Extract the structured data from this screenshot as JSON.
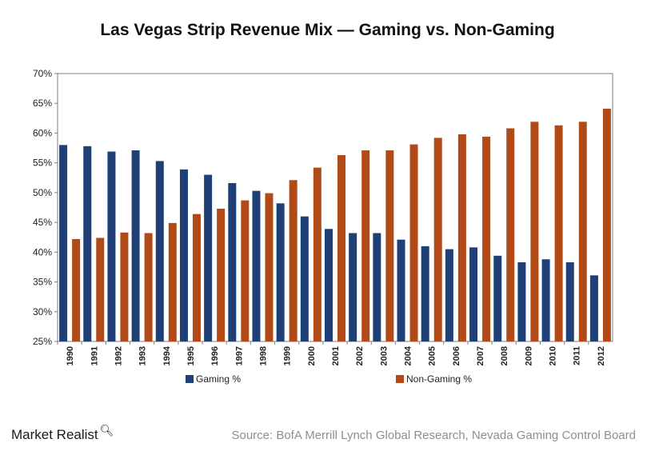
{
  "chart_data": {
    "type": "bar",
    "title": "Las Vegas Strip Revenue Mix — Gaming vs. Non-Gaming",
    "categories": [
      "1990",
      "1991",
      "1992",
      "1993",
      "1994",
      "1995",
      "1996",
      "1997",
      "1998",
      "1999",
      "2000",
      "2001",
      "2002",
      "2003",
      "2004",
      "2005",
      "2006",
      "2007",
      "2008",
      "2009",
      "2010",
      "2011",
      "2012"
    ],
    "series": [
      {
        "name": "Gaming %",
        "color": "#1f3f77",
        "values": [
          58.0,
          57.8,
          56.9,
          57.1,
          55.3,
          53.9,
          53.0,
          51.6,
          50.3,
          48.2,
          46.0,
          43.9,
          43.2,
          43.2,
          42.1,
          41.0,
          40.5,
          40.8,
          39.4,
          38.3,
          38.8,
          38.3,
          36.1
        ]
      },
      {
        "name": "Non-Gaming %",
        "color": "#b24a17",
        "values": [
          42.2,
          42.4,
          43.3,
          43.2,
          44.9,
          46.4,
          47.3,
          48.7,
          49.9,
          52.1,
          54.2,
          56.3,
          57.1,
          57.1,
          58.1,
          59.2,
          59.8,
          59.4,
          60.8,
          61.9,
          61.3,
          61.9,
          64.1
        ]
      }
    ],
    "y_ticks": [
      "25%",
      "30%",
      "35%",
      "40%",
      "45%",
      "50%",
      "55%",
      "60%",
      "65%",
      "70%"
    ],
    "ylim": [
      25,
      70
    ],
    "grid": false,
    "legend_position": "bottom"
  },
  "branding": {
    "name": "Market Realist",
    "icon": "magnifier-icon"
  },
  "source": "Source: BofA Merrill Lynch Global Research, Nevada Gaming Control Board"
}
